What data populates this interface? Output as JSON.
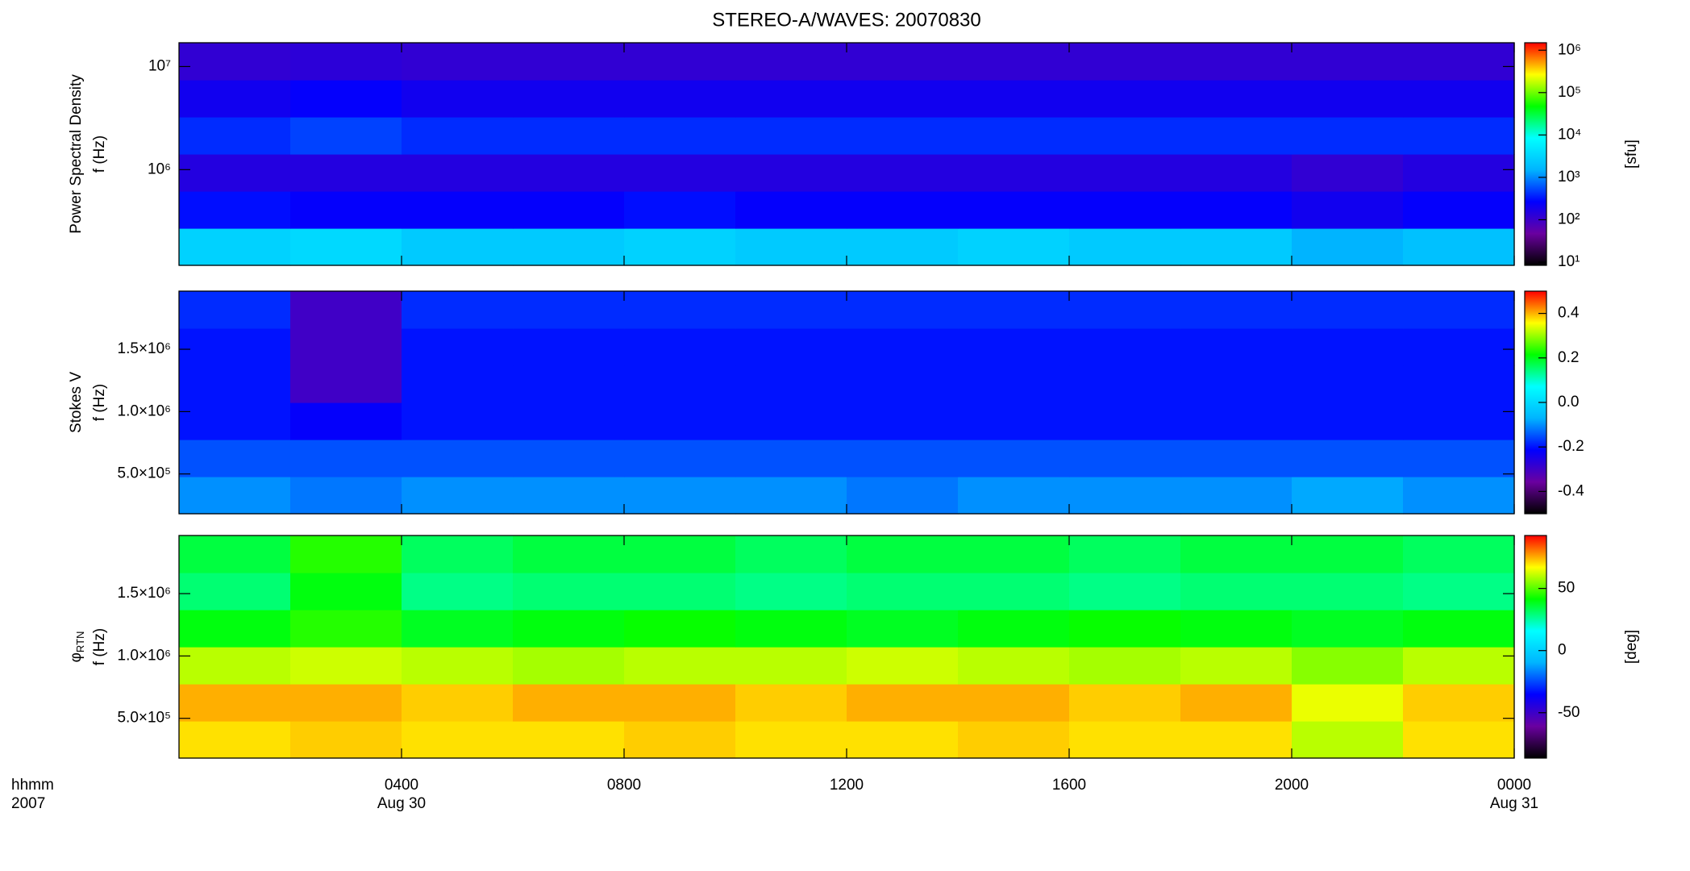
{
  "chart_data": [
    {
      "type": "heatmap",
      "title": "STEREO-A/WAVES: 20070830",
      "ylabel": [
        "Power Spectral Density",
        "f (Hz)"
      ],
      "xlim": [
        0,
        24
      ],
      "ylim": [
        118000,
        17000000
      ],
      "ylog": true,
      "yticks": [
        {
          "value": 1000000,
          "label": "10⁶"
        },
        {
          "value": 10000000,
          "label": "10⁷"
        }
      ],
      "z": [
        [
          3000,
          3500,
          2500,
          2500,
          3000,
          2500,
          2500,
          3000,
          2500,
          2500,
          1500,
          2000
        ],
        [
          300,
          250,
          250,
          250,
          300,
          250,
          250,
          250,
          250,
          250,
          200,
          250
        ],
        [
          150,
          150,
          150,
          150,
          150,
          150,
          150,
          150,
          150,
          150,
          120,
          150
        ],
        [
          400,
          500,
          400,
          400,
          400,
          400,
          400,
          400,
          400,
          400,
          400,
          400
        ],
        [
          200,
          250,
          200,
          200,
          200,
          200,
          200,
          200,
          200,
          200,
          200,
          200
        ],
        [
          120,
          130,
          120,
          120,
          120,
          120,
          120,
          120,
          120,
          120,
          120,
          120
        ]
      ],
      "colormap": [
        "#000000",
        "#6a00a0",
        "#0000ff",
        "#00b4ff",
        "#00ffff",
        "#00ff00",
        "#ffff00",
        "#ff0000"
      ],
      "clim": [
        8.4,
        1500000
      ],
      "clog": true,
      "cticks": [
        {
          "value": 10,
          "label": "10¹"
        },
        {
          "value": 100,
          "label": "10²"
        },
        {
          "value": 1000,
          "label": "10³"
        },
        {
          "value": 10000,
          "label": "10⁴"
        },
        {
          "value": 100000,
          "label": "10⁵"
        },
        {
          "value": 1000000,
          "label": "10⁶"
        }
      ],
      "clabel": "[sfu]"
    },
    {
      "type": "heatmap",
      "ylabel": [
        "Stokes V",
        "f (Hz)"
      ],
      "xlim": [
        0,
        24
      ],
      "ylim": [
        181000,
        1966000
      ],
      "ylog": false,
      "yticks": [
        {
          "value": 500000,
          "label": "5.0×10⁵"
        },
        {
          "value": 1000000,
          "label": "1.0×10⁶"
        },
        {
          "value": 1500000,
          "label": "1.5×10⁶"
        }
      ],
      "z": [
        [
          -0.1,
          -0.12,
          -0.1,
          -0.1,
          -0.1,
          -0.1,
          -0.12,
          -0.1,
          -0.1,
          -0.1,
          -0.08,
          -0.1
        ],
        [
          -0.15,
          -0.15,
          -0.15,
          -0.15,
          -0.15,
          -0.15,
          -0.15,
          -0.15,
          -0.15,
          -0.15,
          -0.15,
          -0.15
        ],
        [
          -0.2,
          -0.22,
          -0.2,
          -0.2,
          -0.2,
          -0.2,
          -0.2,
          -0.2,
          -0.2,
          -0.2,
          -0.2,
          -0.2
        ],
        [
          -0.2,
          -0.3,
          -0.2,
          -0.2,
          -0.2,
          -0.2,
          -0.2,
          -0.2,
          -0.2,
          -0.2,
          -0.2,
          -0.2
        ],
        [
          -0.2,
          -0.3,
          -0.2,
          -0.2,
          -0.2,
          -0.2,
          -0.2,
          -0.2,
          -0.2,
          -0.2,
          -0.2,
          -0.2
        ],
        [
          -0.18,
          -0.3,
          -0.18,
          -0.18,
          -0.18,
          -0.18,
          -0.18,
          -0.18,
          -0.18,
          -0.18,
          -0.18,
          -0.18
        ]
      ],
      "colormap": [
        "#000000",
        "#6a00a0",
        "#0000ff",
        "#00b4ff",
        "#00ffff",
        "#00ff00",
        "#ffff00",
        "#ff0000"
      ],
      "clim": [
        -0.5,
        0.5
      ],
      "clog": false,
      "cticks": [
        -0.4,
        -0.2,
        {
          "value": 0,
          "label": "0.0"
        },
        0.2,
        0.4
      ]
    },
    {
      "type": "heatmap",
      "ylabel": [
        "φ",
        "f (Hz)"
      ],
      "ylabel_subscript": "RTN",
      "xlim": [
        0,
        24
      ],
      "ylim": [
        181000,
        1966000
      ],
      "ylog": false,
      "yticks": [
        {
          "value": 500000,
          "label": "5.0×10⁵"
        },
        {
          "value": 1000000,
          "label": "1.0×10⁶"
        },
        {
          "value": 1500000,
          "label": "1.5×10⁶"
        }
      ],
      "z": [
        [
          70,
          72,
          70,
          70,
          72,
          70,
          70,
          72,
          70,
          70,
          60,
          70
        ],
        [
          75,
          75,
          72,
          75,
          75,
          72,
          75,
          75,
          72,
          75,
          65,
          72
        ],
        [
          60,
          62,
          60,
          58,
          60,
          60,
          62,
          60,
          58,
          60,
          55,
          60
        ],
        [
          40,
          45,
          38,
          40,
          42,
          40,
          38,
          40,
          42,
          40,
          38,
          40
        ],
        [
          30,
          40,
          28,
          30,
          30,
          28,
          30,
          30,
          28,
          30,
          30,
          28
        ],
        [
          35,
          45,
          32,
          35,
          35,
          32,
          35,
          35,
          32,
          35,
          35,
          32
        ]
      ],
      "colormap": [
        "#000000",
        "#6a00a0",
        "#0000ff",
        "#00b4ff",
        "#00ffff",
        "#00ff00",
        "#ffff00",
        "#ff0000"
      ],
      "clim": [
        -86.5,
        92.6
      ],
      "clog": false,
      "cticks": [
        -50,
        0,
        50
      ],
      "clabel": "[deg]",
      "xticks": [
        {
          "value": 4,
          "label": "0400"
        },
        {
          "value": 8,
          "label": "0800"
        },
        {
          "value": 12,
          "label": "1200"
        },
        {
          "value": 16,
          "label": "1600"
        },
        {
          "value": 20,
          "label": "2000"
        },
        {
          "value": 24,
          "label": "0000"
        }
      ],
      "x_date_labels": [
        {
          "value": 4,
          "label": "Aug 30"
        },
        {
          "value": 24,
          "label": "Aug 31"
        }
      ],
      "x_label": [
        "hhmm",
        "2007"
      ]
    }
  ]
}
